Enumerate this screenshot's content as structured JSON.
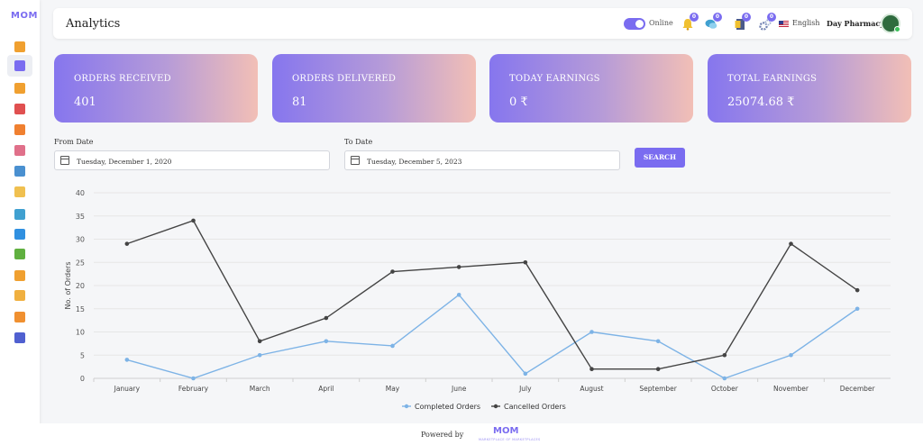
{
  "app": {
    "logo": "MOM"
  },
  "sidebar": {
    "items": [
      {
        "name": "dashboard-icon",
        "color": "#f0a030"
      },
      {
        "name": "analytics-icon",
        "color": "#7a6cf0",
        "active": true
      },
      {
        "name": "orders-icon",
        "color": "#f0a030"
      },
      {
        "name": "payments-icon",
        "color": "#e05050"
      },
      {
        "name": "users-icon",
        "color": "#f08030"
      },
      {
        "name": "support-icon",
        "color": "#e0708a"
      },
      {
        "name": "products-icon",
        "color": "#4a90d0"
      },
      {
        "name": "store-icon",
        "color": "#f0c050"
      },
      {
        "name": "chat-icon",
        "color": "#40a0d0"
      },
      {
        "name": "globe-icon",
        "color": "#3090e0"
      },
      {
        "name": "wallet-icon",
        "color": "#60b040"
      },
      {
        "name": "shop-icon",
        "color": "#f0a030"
      },
      {
        "name": "delivery-icon",
        "color": "#f0b040"
      },
      {
        "name": "gift-icon",
        "color": "#f09030"
      },
      {
        "name": "settings-icon",
        "color": "#5060d0"
      }
    ]
  },
  "header": {
    "title": "Analytics",
    "status_label": "Online",
    "notifications": [
      {
        "icon": "bell-icon",
        "count": "0",
        "color": "#f0c030"
      },
      {
        "icon": "chat-icon",
        "count": "0",
        "color": "#40a0d0"
      },
      {
        "icon": "document-icon",
        "count": "0",
        "color": "#4a5a8a"
      },
      {
        "icon": "gear-icon",
        "count": "0",
        "color": "#7080b0"
      }
    ],
    "language": "English",
    "user_name": "Day Pharmacy"
  },
  "cards": [
    {
      "label": "ORDERS RECEIVED",
      "value": "401"
    },
    {
      "label": "ORDERS DELIVERED",
      "value": "81"
    },
    {
      "label": "TODAY EARNINGS",
      "value": "0 ₹"
    },
    {
      "label": "TOTAL EARNINGS",
      "value": "25074.68 ₹"
    }
  ],
  "filters": {
    "from_label": "From Date",
    "from_value": "Tuesday, December 1, 2020",
    "to_label": "To Date",
    "to_value": "Tuesday, December 5, 2023",
    "search_label": "SEARCH"
  },
  "chart_data": {
    "type": "line",
    "categories": [
      "January",
      "February",
      "March",
      "April",
      "May",
      "June",
      "July",
      "August",
      "September",
      "October",
      "November",
      "December"
    ],
    "series": [
      {
        "name": "Completed Orders",
        "color": "#7db3e6",
        "values": [
          4,
          0,
          5,
          8,
          7,
          18,
          1,
          10,
          8,
          0,
          5,
          15
        ]
      },
      {
        "name": "Cancelled Orders",
        "color": "#444444",
        "values": [
          29,
          34,
          8,
          13,
          23,
          24,
          25,
          2,
          2,
          5,
          29,
          19
        ]
      }
    ],
    "ylabel": "No. of Orders",
    "ylim": [
      0,
      40
    ],
    "yticks": [
      0,
      5,
      10,
      15,
      20,
      25,
      30,
      35,
      40
    ],
    "grid": true,
    "legend": "bottom-center"
  },
  "footer": {
    "powered_label": "Powered by",
    "logo": "MOM",
    "tagline": "MARKETPLACE OF MARKETPLACES"
  }
}
